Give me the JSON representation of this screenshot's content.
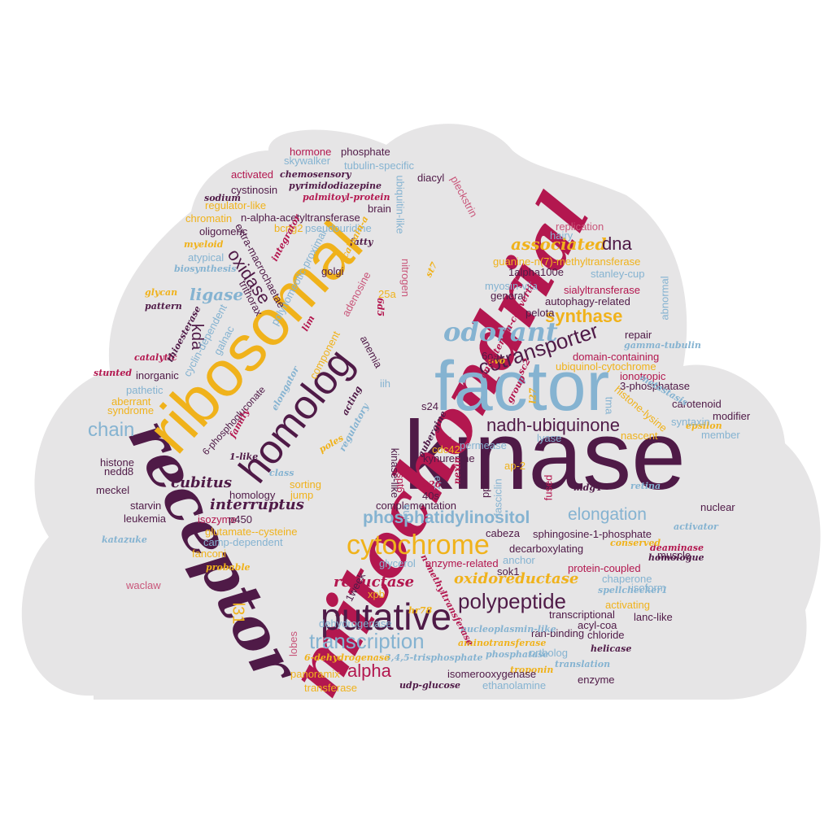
{
  "colors": {
    "cloud": "#e6e5e6",
    "plum": "#4f1a47",
    "crimson": "#b3174f",
    "gold": "#f0b21b",
    "blue": "#85b3d1",
    "maroon": "#7a1f4e",
    "rose": "#c9567a"
  },
  "words": [
    "kinase",
    "mitochondrial",
    "factor",
    "receptor",
    "ribosomal",
    "homolog",
    "putative",
    "cytochrome",
    "polypeptide",
    "transcription",
    "odorant",
    "cotransporter",
    "nadh-ubiquinone",
    "elongation",
    "phosphatidylinositol",
    "chain",
    "alpha",
    "synthase",
    "associated",
    "dna",
    "oxidase",
    "ligase",
    "kda",
    "cubitus",
    "interruptus",
    "reductase",
    "oxidoreductase",
    "l31",
    "6-phosphogluconate",
    "hormone",
    "phosphate",
    "skywalker",
    "tubulin-specific",
    "chemosensory",
    "activated",
    "diacyl",
    "pyrimidodiazepine",
    "cystinosin",
    "sodium",
    "palmitoyl-protein",
    "regulator-like",
    "brain",
    "pleckstrin",
    "chromatin",
    "n-alpha-acetyltransferase",
    "oligomeric",
    "bcng2",
    "pseudouridine",
    "myeloid",
    "fatty",
    "replication",
    "hairy",
    "guanine-n(7)-methyltransferase",
    "atypical",
    "biosynthesis",
    "1alpha100e",
    "stanley-cup",
    "myosin-viia",
    "sialyltransferase",
    "autophagy-related",
    "pelota",
    "golgi",
    "abnormal",
    "general",
    "glycan",
    "pattern",
    "catalytic",
    "stunted",
    "inorganic",
    "pathetic",
    "aberrant",
    "syndrome",
    "histone",
    "nedd8",
    "meckel",
    "starvin",
    "leukemia",
    "isozyme",
    "p450",
    "glutamate--cysteine",
    "camp-dependent",
    "katazuke",
    "fanconi",
    "probable",
    "waclaw",
    "repair",
    "domain-containing",
    "gamma-tubulin",
    "3-phosphatase",
    "ubiquinol-cytochrome",
    "ionotropic",
    "carotenoid",
    "modifier",
    "histone-lysine",
    "metastasis",
    "epsilon",
    "member",
    "nascent",
    "syntaxin",
    "chaperone",
    "isoform",
    "lanc-like",
    "acyl-coa",
    "chloride",
    "helicase",
    "deaminase",
    "homologue",
    "conserved",
    "activator",
    "muscle",
    "nuclear",
    "retina",
    "mdg4",
    "fused",
    "sphingosine-1-phosphate",
    "decarboxylating",
    "protein-coupled",
    "activating",
    "spellchecker1",
    "transcriptional",
    "ran-binding",
    "ortholog",
    "enzyme",
    "translation",
    "troponin",
    "phosphatase",
    "ethanolamine",
    "isomerooxygenase",
    "udp-glucose",
    "3,4,5-trisphosphate",
    "aminotransferase",
    "nucleoplasmin-like",
    "6-dehydrogenase",
    "panoramix",
    "transferase",
    "lobes",
    "hr78",
    "dehydrogenase",
    "xpb",
    "glycerol",
    "enzyme-related",
    "anchor",
    "sok1",
    "cabeza",
    "complementation",
    "40s",
    "ap-2",
    "pp2a",
    "fasciclin",
    "kinase-like",
    "spt6",
    "etz",
    "u26",
    "permease",
    "kynurenine",
    "cdc42",
    "s24",
    "lyase",
    "aubergine",
    "tma",
    "group",
    "l27",
    "sc2",
    "ovo",
    "6oa",
    "iih",
    "25a",
    "st7",
    "lim",
    "integrator",
    "calpain-a",
    "polyhomeotic-proximal",
    "adenosine",
    "nitrogen",
    "6d5",
    "angiotensin-converting",
    "extra-macrochaetae",
    "trithorax",
    "cyclin-dependent",
    "galnac",
    "elongator",
    "component",
    "anemia",
    "acting",
    "regulatory",
    "family",
    "1-like",
    "class",
    "poles",
    "sorting",
    "jump",
    "homology",
    "1week",
    "thioesterase",
    "rna",
    "nexin",
    "n-methyltransferase",
    "ubiquitin-like"
  ]
}
